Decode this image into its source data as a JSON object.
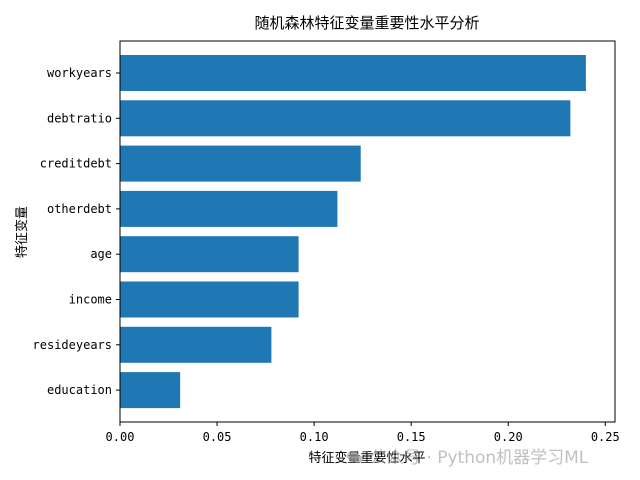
{
  "chart_data": {
    "type": "bar",
    "orientation": "horizontal",
    "title": "随机森林特征变量重要性水平分析",
    "xlabel": "特征变量重要性水平",
    "ylabel": "特征变量",
    "categories": [
      "workyears",
      "debtratio",
      "creditdebt",
      "otherdebt",
      "age",
      "income",
      "resideyears",
      "education"
    ],
    "values": [
      0.24,
      0.232,
      0.124,
      0.112,
      0.092,
      0.092,
      0.078,
      0.031
    ],
    "xlim": [
      0,
      0.255
    ],
    "xticks": [
      "0.00",
      "0.05",
      "0.10",
      "0.15",
      "0.20",
      "0.25"
    ],
    "grid": false,
    "bar_color": "#1f77b4"
  },
  "watermark": {
    "text": "公众号 · Python机器学习ML",
    "icon": "wechat-icon"
  }
}
